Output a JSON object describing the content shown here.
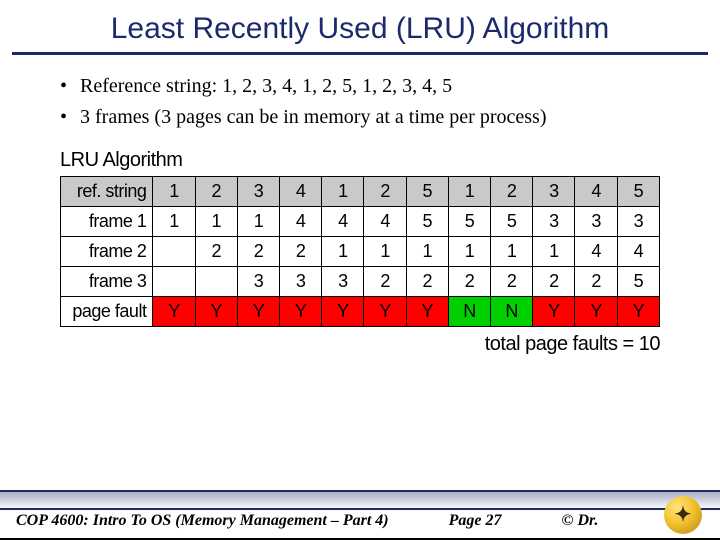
{
  "title": "Least Recently Used (LRU) Algorithm",
  "bullets": [
    "Reference string: 1, 2, 3, 4, 1, 2, 5, 1, 2, 3, 4, 5",
    "3 frames (3 pages can be in memory at a time per process)"
  ],
  "table": {
    "caption": "LRU Algorithm",
    "caption_fontsize": 20,
    "row_header_bg": "#c9c9c9",
    "border_color": "#000000",
    "cell_font": "Arial",
    "cell_fontsize": 18,
    "rows": {
      "ref": {
        "label": "ref. string",
        "cells": [
          "1",
          "2",
          "3",
          "4",
          "1",
          "2",
          "5",
          "1",
          "2",
          "3",
          "4",
          "5"
        ],
        "header_bg": "#c9c9c9"
      },
      "f1": {
        "label": "frame 1",
        "cells": [
          "1",
          "1",
          "1",
          "4",
          "4",
          "4",
          "5",
          "5",
          "5",
          "3",
          "3",
          "3"
        ]
      },
      "f2": {
        "label": "frame 2",
        "cells": [
          "",
          "2",
          "2",
          "2",
          "1",
          "1",
          "1",
          "1",
          "1",
          "1",
          "4",
          "4"
        ]
      },
      "f3": {
        "label": "frame 3",
        "cells": [
          "",
          "",
          "3",
          "3",
          "3",
          "2",
          "2",
          "2",
          "2",
          "2",
          "2",
          "5"
        ]
      },
      "fault": {
        "label": "page fault",
        "cells": [
          "Y",
          "Y",
          "Y",
          "Y",
          "Y",
          "Y",
          "Y",
          "N",
          "N",
          "Y",
          "Y",
          "Y"
        ]
      }
    },
    "fault_colors": {
      "Y": "#ff0000",
      "N": "#00d000"
    },
    "column_count": 12
  },
  "summary": "total page faults = 10",
  "footer": {
    "course": "COP 4600: Intro To OS  (Memory Management – Part 4)",
    "page": "Page 27",
    "credit": "© Dr.",
    "gradient_top": "#aab0c5",
    "gradient_bottom": "#ffffff",
    "rule_color": "#1a2a6c"
  },
  "logo": {
    "bg_outer": "#b6831a",
    "bg_mid": "#f3c22a",
    "bg_inner": "#ffe680",
    "glyph": "✦"
  }
}
